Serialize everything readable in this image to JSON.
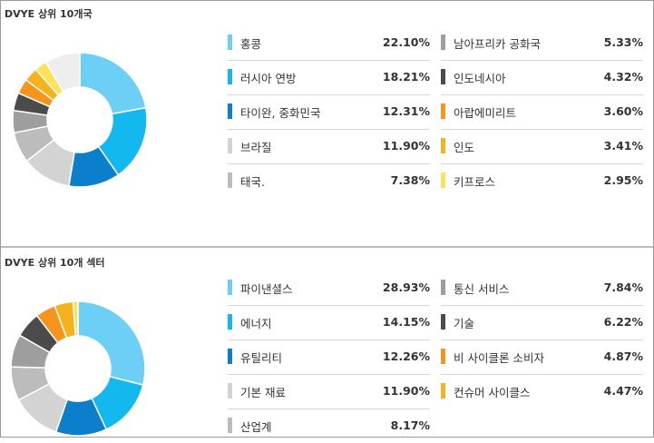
{
  "panels": [
    {
      "title": "DVYE 상위 10개국"
    },
    {
      "title": "DVYE 상위 10개 섹터"
    }
  ],
  "chart_data": [
    {
      "type": "pie",
      "title": "DVYE 상위 10개국",
      "categories": [
        "홍콩",
        "러시아 연방",
        "타이완, 중화민국",
        "브라질",
        "태국.",
        "남아프리카 공화국",
        "인도네시아",
        "아랍에미리트",
        "인도",
        "키프로스"
      ],
      "values": [
        22.1,
        18.21,
        12.31,
        11.9,
        7.38,
        5.33,
        4.32,
        3.6,
        3.41,
        2.95
      ],
      "labels": [
        "22.10%",
        "18.21%",
        "12.31%",
        "11.90%",
        "7.38%",
        "5.33%",
        "4.32%",
        "3.60%",
        "3.41%",
        "2.95%"
      ],
      "colors": [
        "#6ecff6",
        "#12b8ee",
        "#0b7fcb",
        "#d3d3d3",
        "#bcbcbc",
        "#9e9e9e",
        "#4b4b4b",
        "#f7941e",
        "#f5b21c",
        "#fde158"
      ],
      "remainder_color": "#eeeeee",
      "legend_placement": "right"
    },
    {
      "type": "pie",
      "title": "DVYE 상위 10개 섹터",
      "categories": [
        "파이낸셜스",
        "에너지",
        "유틸리티",
        "기본 재료",
        "산업계",
        "통신 서비스",
        "기술",
        "비 사이클론 소비자",
        "컨슈머 사이클스"
      ],
      "values": [
        28.93,
        14.15,
        12.26,
        11.9,
        8.17,
        7.84,
        6.22,
        4.87,
        4.47
      ],
      "labels": [
        "28.93%",
        "14.15%",
        "12.26%",
        "11.90%",
        "8.17%",
        "7.84%",
        "6.22%",
        "4.87%",
        "4.47%"
      ],
      "colors": [
        "#6ecff6",
        "#12b8ee",
        "#0b7fcb",
        "#d3d3d3",
        "#bcbcbc",
        "#9e9e9e",
        "#4b4b4b",
        "#f7941e",
        "#f5b21c"
      ],
      "remainder_color": "#fde158",
      "legend_placement": "right"
    }
  ]
}
